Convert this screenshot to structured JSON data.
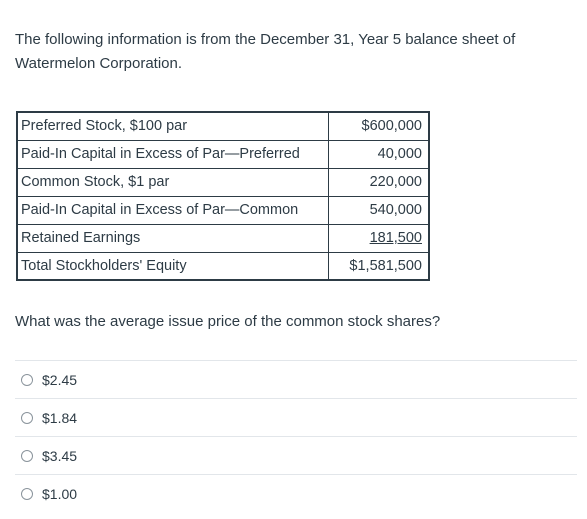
{
  "intro": {
    "line1": "The following information is from the December 31, Year 5 balance sheet of",
    "line2": "Watermelon Corporation."
  },
  "balance_sheet": {
    "rows": [
      {
        "label": "Preferred Stock, $100 par",
        "value": "$600,000"
      },
      {
        "label": "Paid-In Capital in Excess of Par—Preferred",
        "value": "40,000"
      },
      {
        "label": "Common Stock, $1 par",
        "value": "220,000"
      },
      {
        "label": "Paid-In Capital in Excess of Par—Common",
        "value": "540,000"
      },
      {
        "label": "Retained Earnings",
        "value": "181,500"
      },
      {
        "label": "Total Stockholders' Equity",
        "value": "$1,581,500"
      }
    ]
  },
  "question": "What was the average issue price of the common stock shares?",
  "answers": [
    {
      "label": "$2.45"
    },
    {
      "label": "$1.84"
    },
    {
      "label": "$3.45"
    },
    {
      "label": "$1.00"
    }
  ]
}
